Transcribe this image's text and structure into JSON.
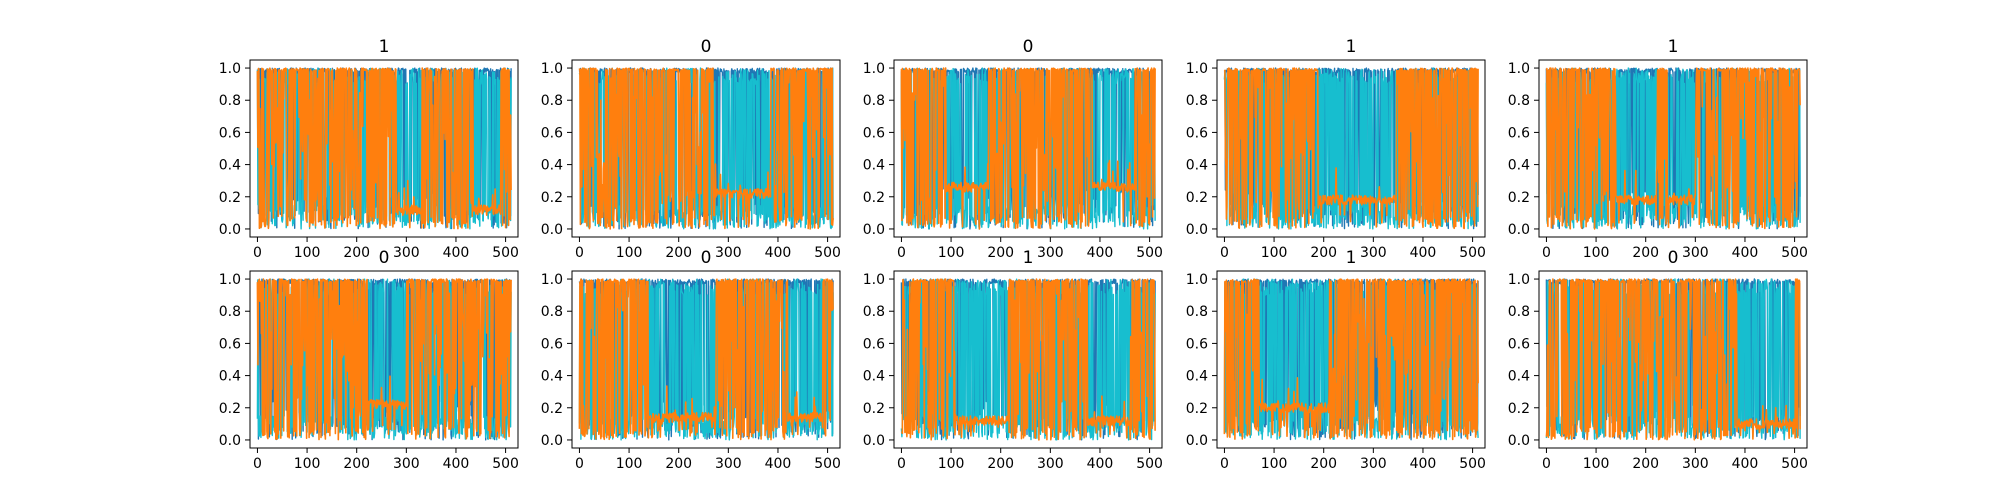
{
  "chart_data": {
    "type": "line",
    "layout": {
      "rows": 2,
      "cols": 5
    },
    "legend": "none",
    "grid": false,
    "panels": [
      {
        "title": "1",
        "xlim": [
          -15,
          525
        ],
        "ylim": [
          -0.05,
          1.05
        ],
        "xticks": [
          0,
          100,
          200,
          300,
          400,
          500
        ],
        "yticks": [
          0.0,
          0.2,
          0.4,
          0.6,
          0.8,
          1.0
        ],
        "series": [
          {
            "color": "#1f77b4",
            "kind": "high_dense"
          },
          {
            "color": "#17becf",
            "kind": "high_sparse"
          },
          {
            "color": "#ff7f0e",
            "kind": "orange",
            "valleys": [
              [
                280,
                330
              ],
              [
                435,
                490
              ]
            ],
            "valley_level": 0.12
          }
        ]
      },
      {
        "title": "0",
        "xlim": [
          -15,
          525
        ],
        "ylim": [
          -0.05,
          1.05
        ],
        "xticks": [
          0,
          100,
          200,
          300,
          400,
          500
        ],
        "yticks": [
          0.0,
          0.2,
          0.4,
          0.6,
          0.8,
          1.0
        ],
        "series": [
          {
            "color": "#1f77b4",
            "kind": "high_dense"
          },
          {
            "color": "#17becf",
            "kind": "high_sparse"
          },
          {
            "color": "#ff7f0e",
            "kind": "orange",
            "valleys": [
              [
                270,
                385
              ]
            ],
            "valley_level": 0.22
          }
        ]
      },
      {
        "title": "0",
        "xlim": [
          -15,
          525
        ],
        "ylim": [
          -0.05,
          1.05
        ],
        "xticks": [
          0,
          100,
          200,
          300,
          400,
          500
        ],
        "yticks": [
          0.0,
          0.2,
          0.4,
          0.6,
          0.8,
          1.0
        ],
        "series": [
          {
            "color": "#1f77b4",
            "kind": "high_dense"
          },
          {
            "color": "#17becf",
            "kind": "high_sparse"
          },
          {
            "color": "#ff7f0e",
            "kind": "orange",
            "valleys": [
              [
                90,
                175
              ],
              [
                385,
                470
              ]
            ],
            "valley_level": 0.26
          }
        ]
      },
      {
        "title": "1",
        "xlim": [
          -15,
          525
        ],
        "ylim": [
          -0.05,
          1.05
        ],
        "xticks": [
          0,
          100,
          200,
          300,
          400,
          500
        ],
        "yticks": [
          0.0,
          0.2,
          0.4,
          0.6,
          0.8,
          1.0
        ],
        "series": [
          {
            "color": "#1f77b4",
            "kind": "high_dense"
          },
          {
            "color": "#17becf",
            "kind": "high_sparse"
          },
          {
            "color": "#ff7f0e",
            "kind": "orange",
            "valleys": [
              [
                190,
                345
              ]
            ],
            "valley_level": 0.18
          }
        ]
      },
      {
        "title": "1",
        "xlim": [
          -15,
          525
        ],
        "ylim": [
          -0.05,
          1.05
        ],
        "xticks": [
          0,
          100,
          200,
          300,
          400,
          500
        ],
        "yticks": [
          0.0,
          0.2,
          0.4,
          0.6,
          0.8,
          1.0
        ],
        "series": [
          {
            "color": "#1f77b4",
            "kind": "high_dense"
          },
          {
            "color": "#17becf",
            "kind": "high_sparse"
          },
          {
            "color": "#ff7f0e",
            "kind": "orange",
            "valleys": [
              [
                140,
                220
              ],
              [
                245,
                300
              ]
            ],
            "valley_level": 0.18
          }
        ]
      },
      {
        "title": "0",
        "xlim": [
          -15,
          525
        ],
        "ylim": [
          -0.05,
          1.05
        ],
        "xticks": [
          0,
          100,
          200,
          300,
          400,
          500
        ],
        "yticks": [
          0.0,
          0.2,
          0.4,
          0.6,
          0.8,
          1.0
        ],
        "series": [
          {
            "color": "#1f77b4",
            "kind": "high_dense"
          },
          {
            "color": "#17becf",
            "kind": "high_sparse"
          },
          {
            "color": "#ff7f0e",
            "kind": "orange",
            "valleys": [
              [
                225,
                300
              ]
            ],
            "valley_level": 0.22
          }
        ]
      },
      {
        "title": "0",
        "xlim": [
          -15,
          525
        ],
        "ylim": [
          -0.05,
          1.05
        ],
        "xticks": [
          0,
          100,
          200,
          300,
          400,
          500
        ],
        "yticks": [
          0.0,
          0.2,
          0.4,
          0.6,
          0.8,
          1.0
        ],
        "series": [
          {
            "color": "#1f77b4",
            "kind": "high_dense"
          },
          {
            "color": "#17becf",
            "kind": "high_sparse"
          },
          {
            "color": "#ff7f0e",
            "kind": "orange",
            "valleys": [
              [
                140,
                275
              ],
              [
                420,
                490
              ]
            ],
            "valley_level": 0.14
          }
        ]
      },
      {
        "title": "1",
        "xlim": [
          -15,
          525
        ],
        "ylim": [
          -0.05,
          1.05
        ],
        "xticks": [
          0,
          100,
          200,
          300,
          400,
          500
        ],
        "yticks": [
          0.0,
          0.2,
          0.4,
          0.6,
          0.8,
          1.0
        ],
        "series": [
          {
            "color": "#1f77b4",
            "kind": "high_dense"
          },
          {
            "color": "#17becf",
            "kind": "high_sparse"
          },
          {
            "color": "#ff7f0e",
            "kind": "orange",
            "valleys": [
              [
                110,
                215
              ],
              [
                375,
                460
              ]
            ],
            "valley_level": 0.12
          }
        ]
      },
      {
        "title": "1",
        "xlim": [
          -15,
          525
        ],
        "ylim": [
          -0.05,
          1.05
        ],
        "xticks": [
          0,
          100,
          200,
          300,
          400,
          500
        ],
        "yticks": [
          0.0,
          0.2,
          0.4,
          0.6,
          0.8,
          1.0
        ],
        "series": [
          {
            "color": "#1f77b4",
            "kind": "high_dense"
          },
          {
            "color": "#17becf",
            "kind": "high_sparse"
          },
          {
            "color": "#ff7f0e",
            "kind": "orange",
            "valleys": [
              [
                70,
                210
              ]
            ],
            "valley_level": 0.2
          }
        ]
      },
      {
        "title": "0",
        "xlim": [
          -15,
          525
        ],
        "ylim": [
          -0.05,
          1.05
        ],
        "xticks": [
          0,
          100,
          200,
          300,
          400,
          500
        ],
        "yticks": [
          0.0,
          0.2,
          0.4,
          0.6,
          0.8,
          1.0
        ],
        "series": [
          {
            "color": "#1f77b4",
            "kind": "high_dense"
          },
          {
            "color": "#17becf",
            "kind": "high_sparse"
          },
          {
            "color": "#ff7f0e",
            "kind": "orange",
            "valleys": [
              [
                385,
                500
              ]
            ],
            "valley_level": 0.1
          }
        ]
      }
    ]
  }
}
